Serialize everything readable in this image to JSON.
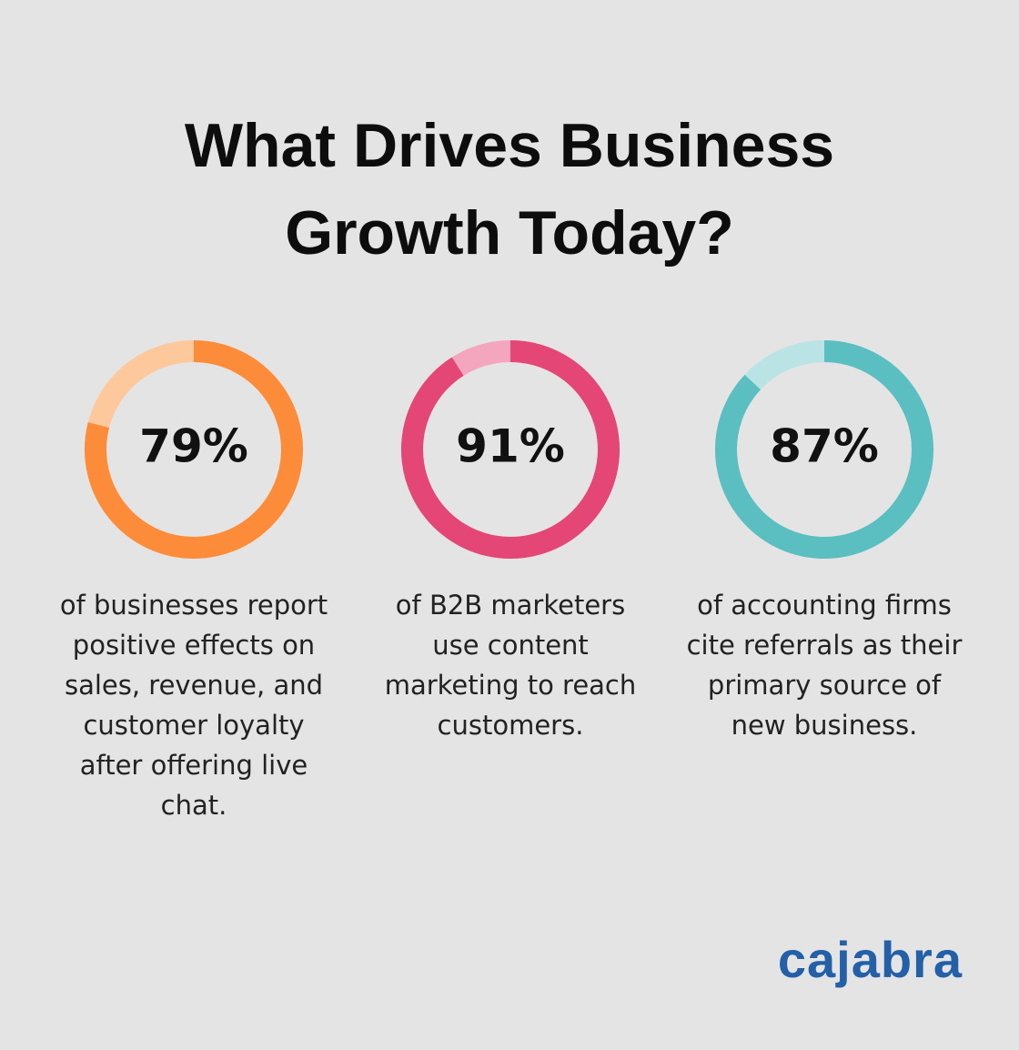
{
  "title": "What Drives Business Growth Today?",
  "chart_data": [
    {
      "type": "donut",
      "values": [
        79
      ],
      "value_labels": [
        "79%"
      ],
      "ylim": [
        0,
        100
      ],
      "color": "#fd8c3a",
      "track_color": "#fdc99c",
      "caption": [
        "of businesses report",
        "positive effects on",
        "sales, revenue, and",
        "customer loyalty",
        "after offering live",
        "chat."
      ]
    },
    {
      "type": "donut",
      "values": [
        91
      ],
      "value_labels": [
        "91%"
      ],
      "ylim": [
        0,
        100
      ],
      "color": "#e44676",
      "track_color": "#f4a6bf",
      "caption": [
        "of B2B marketers",
        "use content",
        "marketing to reach",
        "customers."
      ]
    },
    {
      "type": "donut",
      "values": [
        87
      ],
      "value_labels": [
        "87%"
      ],
      "ylim": [
        0,
        100
      ],
      "color": "#5bbfc1",
      "track_color": "#b9e3e4",
      "caption": [
        "of accounting firms",
        "cite referrals as their",
        "primary source of",
        "new business."
      ]
    }
  ],
  "logo": "cajabra"
}
